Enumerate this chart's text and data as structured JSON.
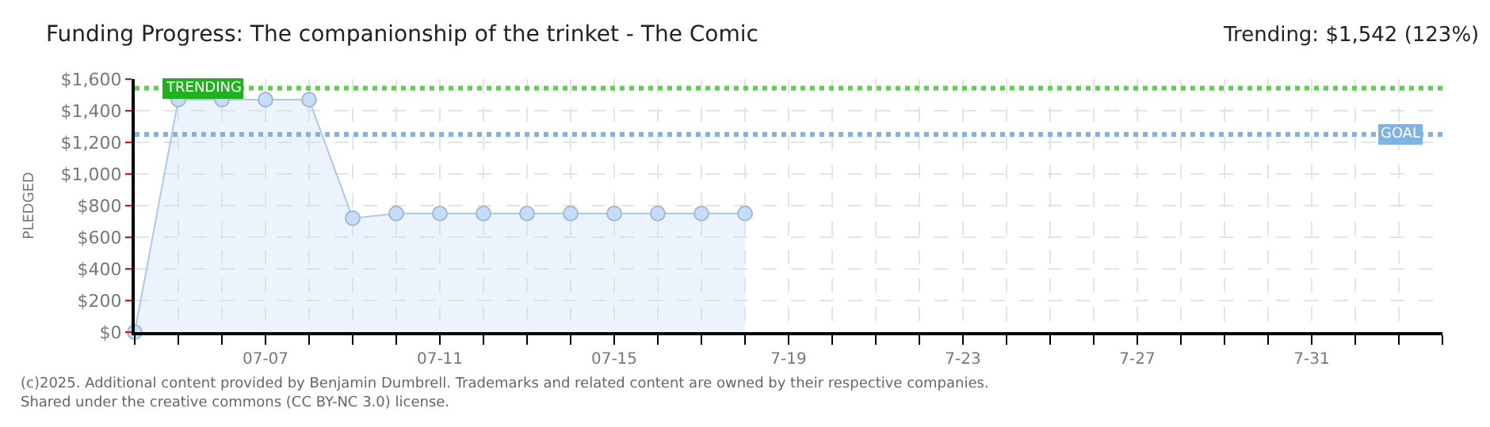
{
  "chart_data": {
    "type": "area",
    "title": "Funding Progress: The companionship of the trinket - The Comic",
    "subtitle": "Trending: $1,542 (123%)",
    "ylabel": "PLEDGED",
    "x": [
      "--07-04",
      "--07-05",
      "--07-06",
      "--07-07",
      "--07-08",
      "--07-09",
      "--07-10",
      "--07-11",
      "--07-12",
      "--07-13",
      "--07-14",
      "--07-15",
      "--07-16",
      "--07-17",
      "--07-18"
    ],
    "series": [
      {
        "color": "#a9c9ee",
        "values": [
          0,
          1470,
          1470,
          1470,
          1470,
          720,
          750,
          750,
          750,
          750,
          750,
          750,
          750,
          750,
          750
        ]
      }
    ],
    "xlim": [
      "--07-04",
      "--08-03"
    ],
    "xticks": [
      {
        "value": "--07-04",
        "label": null
      },
      {
        "value": "--07-05",
        "label": null
      },
      {
        "value": "--07-06",
        "label": null
      },
      {
        "value": "--07-07",
        "label": "07-07"
      },
      {
        "value": "--07-08",
        "label": null
      },
      {
        "value": "--07-09",
        "label": null
      },
      {
        "value": "--07-10",
        "label": null
      },
      {
        "value": "--07-11",
        "label": "07-11"
      },
      {
        "value": "--07-12",
        "label": null
      },
      {
        "value": "--07-13",
        "label": null
      },
      {
        "value": "--07-14",
        "label": null
      },
      {
        "value": "--07-15",
        "label": "07-15"
      },
      {
        "value": "--07-16",
        "label": null
      },
      {
        "value": "--07-17",
        "label": null
      },
      {
        "value": "--07-18",
        "label": null
      },
      {
        "value": "--07-19",
        "label": "7-19"
      },
      {
        "value": "--07-20",
        "label": null
      },
      {
        "value": "--07-21",
        "label": null
      },
      {
        "value": "--07-22",
        "label": null
      },
      {
        "value": "--07-23",
        "label": "7-23"
      },
      {
        "value": "--07-24",
        "label": null
      },
      {
        "value": "--07-25",
        "label": null
      },
      {
        "value": "--07-26",
        "label": null
      },
      {
        "value": "--07-27",
        "label": "7-27"
      },
      {
        "value": "--07-28",
        "label": null
      },
      {
        "value": "--07-29",
        "label": null
      },
      {
        "value": "--07-30",
        "label": null
      },
      {
        "value": "--07-31",
        "label": "7-31"
      },
      {
        "value": "--08-01",
        "label": null
      },
      {
        "value": "--08-02",
        "label": null
      },
      {
        "value": "--08-03",
        "label": null
      }
    ],
    "ylim": [
      0,
      1600
    ],
    "yticks": [
      {
        "value": 0,
        "label": "$0"
      },
      {
        "value": 200,
        "label": "$200"
      },
      {
        "value": 400,
        "label": "$400"
      },
      {
        "value": 600,
        "label": "$600"
      },
      {
        "value": 800,
        "label": "$800"
      },
      {
        "value": 1000,
        "label": "$1,000"
      },
      {
        "value": 1200,
        "label": "$1,200"
      },
      {
        "value": 1400,
        "label": "$1,400"
      },
      {
        "value": 1600,
        "label": "$1,600"
      }
    ],
    "ref_lines": [
      {
        "axis": "y",
        "value": 1542,
        "label": "TRENDING",
        "color": "#5fcf4f",
        "line_style": "dotted"
      },
      {
        "axis": "y",
        "value": 1250,
        "label": "GOAL",
        "color": "#7fb2e5",
        "line_style": "dotted"
      }
    ],
    "grid": true,
    "marker": "circle",
    "line_style": "solid",
    "annotations": [
      "(c)2025. Additional content provided by Benjamin Dumbrell. Trademarks and related content are owned by their respective companies.",
      "Shared under the creative commons (CC BY-NC 3.0) license."
    ]
  }
}
